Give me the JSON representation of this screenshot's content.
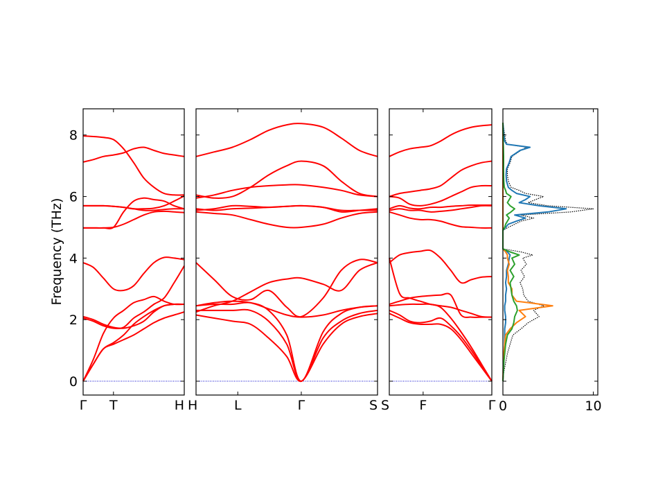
{
  "chart_data": [
    {
      "type": "line",
      "ylabel": "Frequency (THz)",
      "ylim": [
        -0.45,
        8.85
      ],
      "yticks": [
        0,
        2,
        4,
        6,
        8
      ],
      "band_color": "#ff0000",
      "zero_line_color": "#0000cc",
      "segments": [
        {
          "xlabels": [
            "Γ",
            "T",
            "H"
          ],
          "xticks": [
            0,
            0.3,
            1
          ],
          "x": [
            0,
            0.1,
            0.2,
            0.3,
            0.4,
            0.5,
            0.6,
            0.7,
            0.8,
            0.9,
            1.0
          ],
          "bands": [
            [
              0,
              0.55,
              1.05,
              1.2,
              1.35,
              1.5,
              1.7,
              1.9,
              2.05,
              2.15,
              2.25
            ],
            [
              0,
              0.55,
              1.05,
              1.25,
              1.5,
              1.85,
              2.1,
              2.3,
              2.45,
              2.5,
              2.5
            ],
            [
              0,
              0.7,
              1.55,
              2.05,
              2.3,
              2.55,
              2.65,
              2.75,
              2.6,
              2.5,
              2.5
            ],
            [
              2.1,
              2.0,
              1.85,
              1.75,
              1.72,
              1.8,
              1.95,
              2.25,
              2.45,
              2.5,
              2.5
            ],
            [
              2.05,
              1.95,
              1.8,
              1.72,
              1.75,
              2.05,
              2.25,
              2.5,
              2.7,
              3.2,
              3.75
            ],
            [
              3.85,
              3.7,
              3.35,
              3.0,
              2.95,
              3.1,
              3.5,
              3.85,
              4.02,
              4.0,
              3.95
            ],
            [
              4.98,
              4.98,
              4.98,
              5.0,
              5.1,
              5.25,
              5.4,
              5.5,
              5.52,
              5.5,
              5.48
            ],
            [
              4.98,
              4.98,
              4.98,
              5.0,
              5.5,
              5.85,
              5.95,
              5.9,
              5.85,
              5.7,
              5.6
            ],
            [
              5.7,
              5.7,
              5.7,
              5.68,
              5.65,
              5.6,
              5.55,
              5.55,
              5.58,
              5.6,
              5.6
            ],
            [
              5.7,
              5.7,
              5.7,
              5.68,
              5.65,
              5.6,
              5.6,
              5.62,
              5.7,
              5.85,
              6.02
            ],
            [
              7.12,
              7.2,
              7.3,
              7.35,
              7.42,
              7.55,
              7.6,
              7.5,
              7.4,
              7.35,
              7.3
            ],
            [
              7.97,
              7.95,
              7.92,
              7.85,
              7.55,
              7.1,
              6.6,
              6.3,
              6.1,
              6.05,
              6.05
            ]
          ]
        },
        {
          "xlabels": [
            "H",
            "L",
            "Γ",
            "S"
          ],
          "xticks": [
            0,
            0.23,
            0.58,
            1
          ],
          "x": [
            0,
            0.1,
            0.2,
            0.3,
            0.4,
            0.5,
            0.58,
            0.7,
            0.8,
            0.9,
            1.0
          ],
          "bands": [
            [
              2.15,
              2.05,
              1.95,
              1.85,
              1.4,
              0.8,
              0,
              1.2,
              1.85,
              2.1,
              2.2
            ],
            [
              2.3,
              2.3,
              2.3,
              2.3,
              1.95,
              1.2,
              0,
              1.4,
              1.95,
              2.2,
              2.3
            ],
            [
              2.45,
              2.5,
              2.5,
              2.55,
              2.3,
              1.5,
              0,
              1.6,
              2.2,
              2.4,
              2.45
            ],
            [
              2.45,
              2.55,
              2.6,
              2.55,
              2.35,
              2.15,
              2.08,
              2.15,
              2.3,
              2.4,
              2.45
            ],
            [
              2.25,
              2.45,
              2.6,
              2.9,
              3.2,
              3.32,
              3.35,
              3.15,
              2.95,
              3.6,
              3.85
            ],
            [
              3.85,
              3.3,
              2.75,
              2.65,
              2.95,
              2.4,
              2.1,
              2.7,
              3.6,
              3.95,
              3.85
            ],
            [
              5.5,
              5.45,
              5.4,
              5.25,
              5.1,
              5.0,
              5.0,
              5.1,
              5.3,
              5.45,
              5.5
            ],
            [
              5.55,
              5.6,
              5.7,
              5.68,
              5.65,
              5.68,
              5.7,
              5.65,
              5.55,
              5.55,
              5.55
            ],
            [
              5.6,
              5.55,
              5.6,
              5.62,
              5.65,
              5.68,
              5.7,
              5.65,
              5.5,
              5.55,
              5.6
            ],
            [
              5.95,
              6.05,
              6.2,
              6.3,
              6.35,
              6.38,
              6.38,
              6.3,
              6.2,
              6.05,
              6.0
            ],
            [
              6.05,
              5.95,
              6.0,
              6.3,
              6.7,
              7.0,
              7.15,
              7.0,
              6.5,
              6.1,
              6.0
            ],
            [
              7.3,
              7.45,
              7.6,
              7.85,
              8.15,
              8.33,
              8.37,
              8.25,
              7.9,
              7.5,
              7.3
            ]
          ]
        },
        {
          "xlabels": [
            "S",
            "F",
            "Γ"
          ],
          "xticks": [
            0,
            0.33,
            1
          ],
          "x": [
            0,
            0.1,
            0.2,
            0.3,
            0.4,
            0.5,
            0.6,
            0.7,
            0.8,
            0.9,
            1.0
          ],
          "bands": [
            [
              2.2,
              2.05,
              1.9,
              1.85,
              1.85,
              1.85,
              1.7,
              1.35,
              0.9,
              0.45,
              0
            ],
            [
              2.3,
              2.15,
              1.95,
              1.9,
              1.95,
              2.05,
              1.8,
              1.45,
              1.0,
              0.5,
              0
            ],
            [
              2.45,
              2.48,
              2.5,
              2.5,
              2.5,
              2.4,
              2.05,
              1.6,
              1.1,
              0.55,
              0
            ],
            [
              2.5,
              2.6,
              2.7,
              2.75,
              2.78,
              2.8,
              2.8,
              2.15,
              2.08,
              2.08,
              2.08
            ],
            [
              3.85,
              4.1,
              4.18,
              4.22,
              4.25,
              4.0,
              3.6,
              3.2,
              3.3,
              3.38,
              3.4
            ],
            [
              4.0,
              2.85,
              2.7,
              2.6,
              2.5,
              2.45,
              2.4,
              2.3,
              2.2,
              2.1,
              2.08
            ],
            [
              5.5,
              5.4,
              5.3,
              5.25,
              5.25,
              5.2,
              5.1,
              5.02,
              5.0,
              4.98,
              4.98
            ],
            [
              5.55,
              5.6,
              5.55,
              5.55,
              5.5,
              5.52,
              5.55,
              5.6,
              5.65,
              5.7,
              5.7
            ],
            [
              5.6,
              5.7,
              5.62,
              5.6,
              5.65,
              5.65,
              5.68,
              5.7,
              5.72,
              5.72,
              5.72
            ],
            [
              6.0,
              5.95,
              5.75,
              5.7,
              5.75,
              5.85,
              6.0,
              6.15,
              6.3,
              6.35,
              6.35
            ],
            [
              6.0,
              6.1,
              6.15,
              6.2,
              6.25,
              6.35,
              6.6,
              6.85,
              7.0,
              7.1,
              7.15
            ],
            [
              7.3,
              7.45,
              7.55,
              7.6,
              7.65,
              7.8,
              8.0,
              8.15,
              8.25,
              8.3,
              8.33
            ]
          ]
        }
      ]
    },
    {
      "type": "line",
      "xlim": [
        0,
        10.5
      ],
      "xticks": [
        0,
        10
      ],
      "xticklabels": [
        "0",
        "10"
      ],
      "frequency": [
        0.0,
        0.3,
        0.6,
        0.9,
        1.2,
        1.5,
        1.7,
        1.9,
        2.1,
        2.3,
        2.45,
        2.6,
        2.8,
        3.0,
        3.2,
        3.4,
        3.6,
        3.8,
        4.0,
        4.1,
        4.2,
        4.3,
        4.6,
        4.9,
        5.0,
        5.1,
        5.2,
        5.3,
        5.4,
        5.5,
        5.6,
        5.7,
        5.8,
        5.9,
        6.0,
        6.1,
        6.2,
        6.3,
        6.5,
        6.7,
        6.9,
        7.1,
        7.3,
        7.5,
        7.6,
        7.7,
        7.8,
        8.0,
        8.2,
        8.4
      ],
      "series": [
        {
          "color": "#000000",
          "style": "dotted",
          "values": [
            0,
            0.1,
            0.3,
            0.5,
            0.8,
            1.1,
            2.0,
            2.8,
            4.0,
            3.4,
            4.5,
            2.8,
            2.3,
            2.2,
            1.9,
            2.4,
            2.0,
            2.6,
            2.2,
            3.3,
            2.0,
            0,
            0,
            0,
            0.6,
            1.3,
            2.0,
            3.4,
            2.0,
            7.5,
            10.0,
            5.0,
            2.8,
            3.6,
            4.5,
            2.5,
            1.8,
            0.9,
            0.6,
            0.5,
            0.5,
            0.8,
            1.0,
            2.0,
            2.6,
            0.5,
            0.3,
            0.2,
            0.1,
            0
          ]
        },
        {
          "color": "#1f77b4",
          "style": "solid",
          "values": [
            0,
            0.05,
            0.1,
            0.15,
            0.2,
            0.2,
            0.2,
            0.3,
            0.3,
            0.2,
            0.2,
            0.3,
            0.3,
            0.4,
            0.3,
            0.4,
            0.4,
            0.6,
            0.7,
            0.8,
            0.5,
            0,
            0,
            0,
            0.3,
            0.6,
            1.5,
            2.5,
            1.3,
            5.0,
            7.0,
            4.0,
            1.8,
            2.5,
            3.0,
            1.5,
            1.0,
            0.6,
            0.4,
            0.35,
            0.4,
            0.7,
            0.9,
            1.9,
            3.0,
            0.4,
            0.2,
            0.1,
            0.05,
            0
          ]
        },
        {
          "color": "#ff7f0e",
          "style": "solid",
          "values": [
            0,
            0.02,
            0.05,
            0.1,
            0.2,
            0.3,
            0.8,
            1.5,
            2.5,
            1.8,
            5.5,
            1.5,
            1.0,
            1.0,
            0.6,
            0.6,
            0.5,
            0.7,
            0.5,
            0.5,
            0.3,
            0,
            0,
            0,
            0,
            0,
            0,
            0,
            0,
            0,
            0,
            0,
            0,
            0,
            0,
            0,
            0,
            0,
            0,
            0,
            0,
            0,
            0,
            0,
            0,
            0,
            0,
            0,
            0,
            0
          ]
        },
        {
          "color": "#2ca02c",
          "style": "solid",
          "values": [
            0,
            0.05,
            0.1,
            0.2,
            0.3,
            0.5,
            1.0,
            1.2,
            1.3,
            1.6,
            1.5,
            1.2,
            1.0,
            0.9,
            0.8,
            1.2,
            0.8,
            1.3,
            1.0,
            1.8,
            0.8,
            0,
            0,
            0,
            0.2,
            0.3,
            0.5,
            0.7,
            0.4,
            0.9,
            1.3,
            0.8,
            0.5,
            0.7,
            0.9,
            0.4,
            0.3,
            0.15,
            0.1,
            0.08,
            0.07,
            0.08,
            0.08,
            0.06,
            0.05,
            0.04,
            0.03,
            0.02,
            0.01,
            0
          ]
        }
      ]
    }
  ]
}
